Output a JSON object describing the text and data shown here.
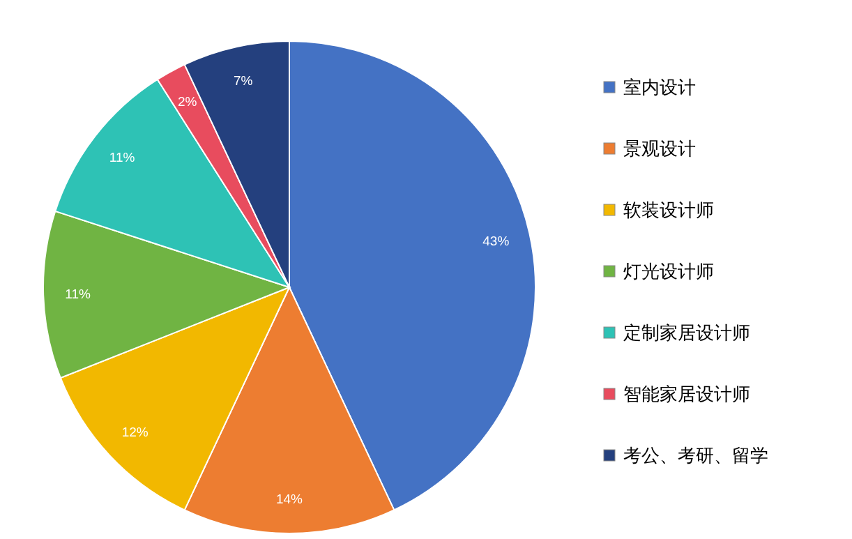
{
  "chart_data": {
    "type": "pie",
    "categories": [
      "室内设计",
      "景观设计",
      "软装设计师",
      "灯光设计师",
      "定制家居设计师",
      "智能家居设计师",
      "考公、考研、留学"
    ],
    "values": [
      43,
      14,
      12,
      11,
      11,
      2,
      7
    ],
    "colors": [
      "#4472c4",
      "#ed7d31",
      "#f2b800",
      "#70b443",
      "#2ec2b5",
      "#e84c5e",
      "#24407e"
    ],
    "value_labels": [
      "43%",
      "14%",
      "12%",
      "11%",
      "11%",
      "2%",
      "7%"
    ],
    "legend": "right"
  }
}
